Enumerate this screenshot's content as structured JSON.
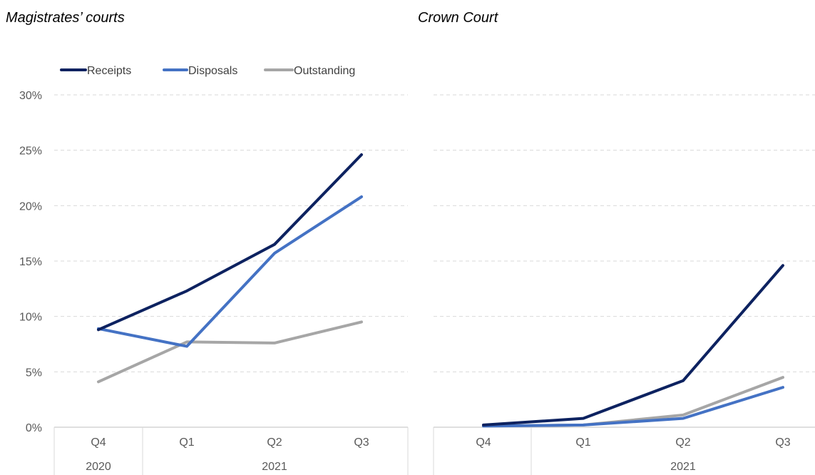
{
  "chart_data": [
    {
      "type": "line",
      "title": "Magistrates’ courts",
      "categories": [
        "Q4",
        "Q1",
        "Q2",
        "Q3"
      ],
      "category_groups": [
        {
          "label": "2020",
          "span": 1
        },
        {
          "label": "2021",
          "span": 3
        }
      ],
      "yticks": [
        "0%",
        "5%",
        "10%",
        "15%",
        "20%",
        "25%",
        "30%"
      ],
      "ylim": [
        0,
        30
      ],
      "grid": true,
      "legend": "top",
      "series": [
        {
          "name": "Receipts",
          "color": "#0D2260",
          "values": [
            8.8,
            12.3,
            16.5,
            24.6
          ]
        },
        {
          "name": "Disposals",
          "color": "#4472C4",
          "values": [
            8.9,
            7.3,
            15.7,
            20.8
          ]
        },
        {
          "name": "Outstanding",
          "color": "#A6A6A6",
          "values": [
            4.1,
            7.7,
            7.6,
            9.5
          ]
        }
      ]
    },
    {
      "type": "line",
      "title": "Crown Court",
      "categories": [
        "Q4",
        "Q1",
        "Q2",
        "Q3"
      ],
      "category_groups": [
        {
          "label": "",
          "span": 1
        },
        {
          "label": "2021",
          "span": 3
        }
      ],
      "ylim": [
        0,
        30
      ],
      "grid": true,
      "series": [
        {
          "color": "#0D2260",
          "values": [
            0.2,
            0.8,
            4.2,
            14.6
          ]
        },
        {
          "color": "#4472C4",
          "values": [
            0.1,
            0.2,
            0.8,
            3.6
          ]
        },
        {
          "color": "#A6A6A6",
          "values": [
            0.1,
            0.2,
            1.1,
            4.5
          ]
        }
      ]
    }
  ]
}
